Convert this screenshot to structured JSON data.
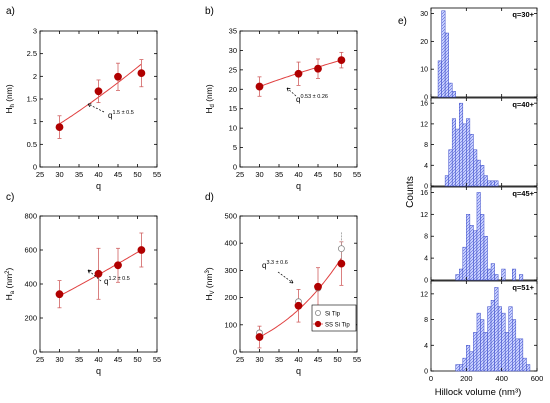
{
  "figure": {
    "colors": {
      "marker": "#b00000",
      "fit": "#e04040",
      "hist_fill": "#c8d0ff",
      "hist_stroke": "#3848c8",
      "hollow": "#888888"
    }
  },
  "chart_data": [
    {
      "panel": "a)",
      "type": "scatter",
      "xlabel": "q",
      "ylabel": "H_h (nm)",
      "ylabel_main": "H",
      "ylabel_sub": "h",
      "ylabel_unit": " (nm)",
      "xlim": [
        25,
        55
      ],
      "ylim": [
        0,
        3
      ],
      "xticks": [
        25,
        30,
        35,
        40,
        45,
        50,
        55
      ],
      "yticks": [
        0,
        0.5,
        1,
        1.5,
        2,
        2.5,
        3
      ],
      "ytick_labels": [
        "0",
        "0.5",
        "1",
        "1.5",
        "2",
        "2.5",
        "3"
      ],
      "x": [
        30,
        40,
        45,
        51
      ],
      "y": [
        0.88,
        1.67,
        1.99,
        2.07
      ],
      "err": [
        0.25,
        0.25,
        0.3,
        0.3
      ],
      "fit": {
        "type": "power",
        "exponent": 1.5,
        "x_start": 30,
        "y_start": 0.95,
        "x_end": 51,
        "y_end": 2.27
      },
      "annotation": {
        "base": "q",
        "sup": "1.5 ± 0.5"
      }
    },
    {
      "panel": "b)",
      "type": "scatter",
      "xlabel": "q",
      "ylabel": "H_d (nm)",
      "ylabel_main": "H",
      "ylabel_sub": "d",
      "ylabel_unit": " (nm)",
      "xlim": [
        25,
        55
      ],
      "ylim": [
        0,
        35
      ],
      "xticks": [
        25,
        30,
        35,
        40,
        45,
        50,
        55
      ],
      "yticks": [
        0,
        5,
        10,
        15,
        20,
        25,
        30,
        35
      ],
      "ytick_labels": [
        "0",
        "5",
        "10",
        "15",
        "20",
        "25",
        "30",
        "35"
      ],
      "x": [
        30,
        40,
        45,
        51
      ],
      "y": [
        20.7,
        24.0,
        25.3,
        27.5
      ],
      "err": [
        2.5,
        3.0,
        2.5,
        2.0
      ],
      "fit": {
        "type": "power",
        "exponent": 0.53,
        "x_start": 30,
        "y_start": 20.7,
        "x_end": 51,
        "y_end": 27.5
      },
      "annotation": {
        "base": "q",
        "sup": "0.53 ± 0.26"
      }
    },
    {
      "panel": "c)",
      "type": "scatter",
      "xlabel": "q",
      "ylabel": "H_a (nm^2)",
      "ylabel_main": "H",
      "ylabel_sub": "a",
      "ylabel_unit": " (nm",
      "ylabel_unit_sup": "2",
      "ylabel_unit_end": ")",
      "xlim": [
        25,
        55
      ],
      "ylim": [
        0,
        800
      ],
      "xticks": [
        25,
        30,
        35,
        40,
        45,
        50,
        55
      ],
      "yticks": [
        0,
        200,
        400,
        600,
        800
      ],
      "ytick_labels": [
        "0",
        "200",
        "400",
        "600",
        "800"
      ],
      "x": [
        30,
        40,
        45,
        51
      ],
      "y": [
        340,
        460,
        510,
        600
      ],
      "err": [
        80,
        150,
        100,
        100
      ],
      "fit": {
        "type": "power",
        "exponent": 1.2,
        "x_start": 30,
        "y_start": 330,
        "x_end": 51,
        "y_end": 600
      },
      "annotation": {
        "base": "q",
        "sup": "1.2 ± 0.5"
      }
    },
    {
      "panel": "d)",
      "type": "scatter",
      "xlabel": "q",
      "ylabel": "H_V (nm^3)",
      "ylabel_main": "H",
      "ylabel_sub": "V",
      "ylabel_unit": " (nm",
      "ylabel_unit_sup": "3",
      "ylabel_unit_end": ")",
      "xlim": [
        25,
        55
      ],
      "ylim": [
        0,
        500
      ],
      "xticks": [
        25,
        30,
        35,
        40,
        45,
        50,
        55
      ],
      "yticks": [
        0,
        100,
        200,
        300,
        400,
        500
      ],
      "ytick_labels": [
        "0",
        "100",
        "200",
        "300",
        "400",
        "500"
      ],
      "x": [
        30,
        40,
        45,
        51
      ],
      "y": [
        55,
        170,
        240,
        325
      ],
      "err": [
        40,
        60,
        70,
        80
      ],
      "hollow_x": [
        30,
        40,
        45,
        51
      ],
      "hollow_y": [
        70,
        185,
        235,
        380
      ],
      "hollow_err": [
        0,
        0,
        0,
        60
      ],
      "fit": {
        "type": "power",
        "exponent": 3.3,
        "x_start": 30,
        "y_start": 55,
        "x_end": 51,
        "y_end": 345
      },
      "annotation": {
        "base": "q",
        "sup": "3.3 ± 0.6"
      },
      "legend": [
        "Si Tip",
        "SS Si Tip"
      ]
    },
    {
      "panel": "e)",
      "type": "bar",
      "xlabel": "Hillock volume (nm³)",
      "ylabel": "Counts",
      "xlim": [
        0,
        600
      ],
      "xticks": [
        0,
        200,
        400,
        600
      ],
      "bin_width": 20,
      "subplots": [
        {
          "label": "q=30+",
          "ylim": [
            0,
            32
          ],
          "yticks": [
            0,
            10,
            20,
            30
          ],
          "bins": [
            40,
            60,
            80,
            100,
            120
          ],
          "counts": [
            13,
            31,
            23,
            5,
            2
          ]
        },
        {
          "label": "q=40+",
          "ylim": [
            0,
            17
          ],
          "yticks": [
            0,
            4,
            8,
            12,
            16
          ],
          "bins": [
            80,
            100,
            120,
            140,
            160,
            180,
            200,
            220,
            240,
            260,
            280,
            300,
            320,
            340,
            360
          ],
          "counts": [
            2,
            7,
            13,
            11,
            16,
            12,
            13,
            10,
            7,
            5,
            4,
            2,
            1,
            1,
            1
          ]
        },
        {
          "label": "q=45+",
          "ylim": [
            0,
            17
          ],
          "yticks": [
            0,
            4,
            8,
            12,
            16
          ],
          "bins": [
            140,
            160,
            180,
            200,
            220,
            240,
            260,
            280,
            300,
            320,
            340,
            360,
            380,
            400,
            420,
            440,
            460,
            480,
            500
          ],
          "counts": [
            1,
            2,
            6,
            12,
            10,
            9,
            16,
            12,
            8,
            2,
            3,
            1,
            0,
            2,
            0,
            0,
            2,
            0,
            1
          ]
        },
        {
          "label": "q=51+",
          "ylim": [
            0,
            14
          ],
          "yticks": [
            0,
            4,
            8,
            12
          ],
          "bins": [
            140,
            160,
            180,
            200,
            220,
            240,
            260,
            280,
            300,
            320,
            340,
            360,
            380,
            400,
            420,
            440,
            460,
            480,
            500,
            520,
            540
          ],
          "counts": [
            1,
            1,
            2,
            4,
            3,
            6,
            9,
            8,
            6,
            10,
            11,
            13,
            10,
            9,
            6,
            10,
            8,
            5,
            5,
            2,
            1
          ]
        }
      ]
    }
  ]
}
